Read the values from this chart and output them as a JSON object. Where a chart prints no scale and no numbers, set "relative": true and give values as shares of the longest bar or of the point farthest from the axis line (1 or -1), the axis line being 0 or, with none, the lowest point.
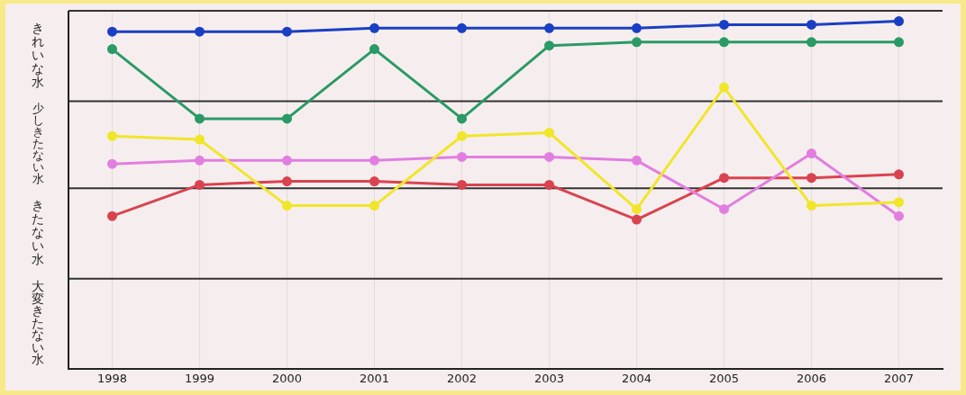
{
  "chart_data": {
    "type": "line",
    "relative": true,
    "categories": [
      "1998",
      "1999",
      "2000",
      "2001",
      "2002",
      "2003",
      "2004",
      "2005",
      "2006",
      "2007"
    ],
    "annotations": [
      "きれいな水",
      "少しきたない水",
      "きたない水",
      "大変きたない水"
    ],
    "ref_lines": [
      {
        "axis": "y",
        "value": 0.26,
        "color": "#333333"
      },
      {
        "axis": "y",
        "value": 0.52,
        "color": "#333333"
      },
      {
        "axis": "y",
        "value": 0.77,
        "color": "#333333"
      },
      {
        "axis": "y",
        "value": 1.03,
        "color": "#333333"
      }
    ],
    "grid": "x",
    "legend": false,
    "marker": "circle",
    "line_style": "solid",
    "series": [
      {
        "color": "#1a3fc4",
        "values": [
          0.97,
          0.97,
          0.97,
          0.98,
          0.98,
          0.98,
          0.98,
          0.99,
          0.99,
          1
        ]
      },
      {
        "color": "#2a9a66",
        "values": [
          0.92,
          0.72,
          0.72,
          0.92,
          0.72,
          0.93,
          0.94,
          0.94,
          0.94,
          0.94
        ]
      },
      {
        "color": "#f0e62a",
        "values": [
          0.67,
          0.66,
          0.47,
          0.47,
          0.67,
          0.68,
          0.46,
          0.81,
          0.47,
          0.48
        ]
      },
      {
        "color": "#e27ee0",
        "values": [
          0.59,
          0.6,
          0.6,
          0.6,
          0.61,
          0.61,
          0.6,
          0.46,
          0.62,
          0.44
        ]
      },
      {
        "color": "#d9434f",
        "values": [
          0.44,
          0.53,
          0.54,
          0.54,
          0.53,
          0.53,
          0.43,
          0.55,
          0.55,
          0.56
        ]
      }
    ]
  }
}
